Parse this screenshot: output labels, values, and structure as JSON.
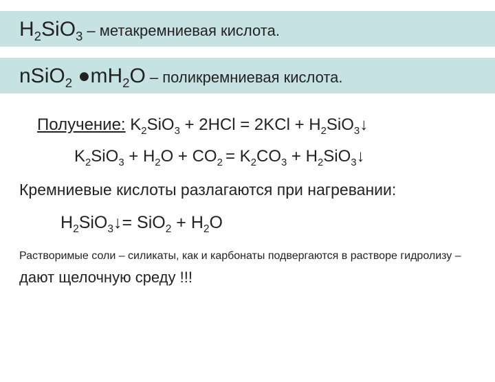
{
  "colors": {
    "banner_bg": "#c7e2e2",
    "text": "#222222",
    "background": "#ffffff"
  },
  "banner1": {
    "formula_html": "H<sub>2</sub>SiO<sub>3</sub>",
    "description": "– метакремниевая кислота."
  },
  "banner2": {
    "formula_html": "nSiO<sub>2</sub> ●mH<sub>2</sub>O",
    "description": "– поликремниевая кислота."
  },
  "prep_label": "Получение:",
  "eq1_html": "K<sub>2</sub>SiO<sub>3</sub> + 2HCl = 2KCl + H<sub>2</sub>SiO<sub>3</sub>↓",
  "eq2_html": "K<sub>2</sub>SiO<sub>3</sub> + H<sub>2</sub>O + CO<sub>2 </sub>= K<sub>2</sub>CO<sub>3</sub> + H<sub>2</sub>SiO<sub>3</sub>↓",
  "decomp_text": "Кремниевые кислоты разлагаются при нагревании:",
  "eq3_html": "H<sub>2</sub>SiO<sub>3</sub>↓= SiO<sub>2</sub> + H<sub>2</sub>O",
  "note_part1": "Растворимые соли – силикаты, как и карбонаты подвергаются в растворе гидролизу – ",
  "note_part2_big": "дают щелочную среду !!!"
}
